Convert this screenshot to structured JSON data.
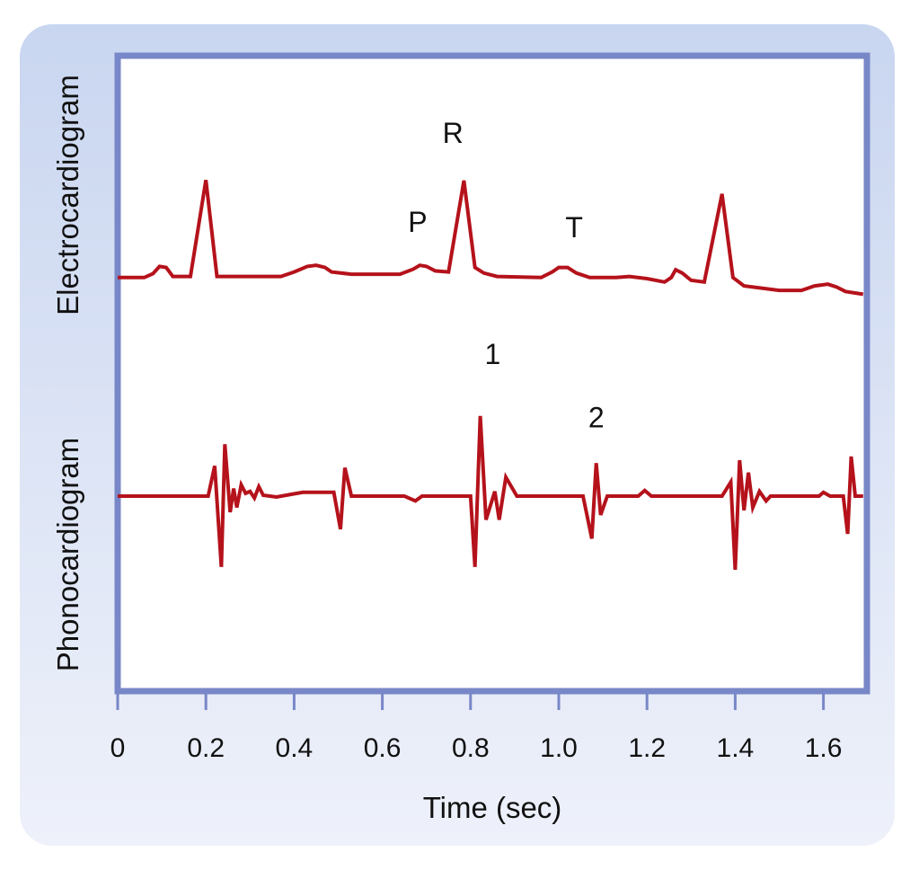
{
  "chart_data": {
    "type": "line",
    "xlabel": "Time (sec)",
    "xlim": [
      0,
      1.69
    ],
    "x_ticks": [
      0,
      0.2,
      0.4,
      0.6,
      0.8,
      1.0,
      1.2,
      1.4,
      1.6
    ],
    "x_tick_labels": [
      "0",
      "0.2",
      "0.4",
      "0.6",
      "0.8",
      "1.0",
      "1.2",
      "1.4",
      "1.6"
    ],
    "grid": false,
    "series": [
      {
        "name": "Electrocardiogram",
        "color": "#b5121b",
        "points": [
          [
            0,
            0.1
          ],
          [
            0.06,
            0.1
          ],
          [
            0.08,
            0.17
          ],
          [
            0.095,
            0.3
          ],
          [
            0.11,
            0.28
          ],
          [
            0.125,
            0.12
          ],
          [
            0.165,
            0.12
          ],
          [
            0.2,
            1.85
          ],
          [
            0.225,
            0.12
          ],
          [
            0.37,
            0.12
          ],
          [
            0.4,
            0.2
          ],
          [
            0.43,
            0.3
          ],
          [
            0.45,
            0.32
          ],
          [
            0.47,
            0.28
          ],
          [
            0.485,
            0.2
          ],
          [
            0.53,
            0.16
          ],
          [
            0.64,
            0.16
          ],
          [
            0.67,
            0.25
          ],
          [
            0.685,
            0.32
          ],
          [
            0.7,
            0.3
          ],
          [
            0.72,
            0.22
          ],
          [
            0.75,
            0.2
          ],
          [
            0.785,
            1.84
          ],
          [
            0.81,
            0.28
          ],
          [
            0.83,
            0.18
          ],
          [
            0.86,
            0.12
          ],
          [
            0.96,
            0.1
          ],
          [
            0.985,
            0.2
          ],
          [
            1.0,
            0.28
          ],
          [
            1.02,
            0.28
          ],
          [
            1.04,
            0.18
          ],
          [
            1.07,
            0.1
          ],
          [
            1.13,
            0.1
          ],
          [
            1.16,
            0.12
          ],
          [
            1.2,
            0.08
          ],
          [
            1.24,
            0.02
          ],
          [
            1.255,
            0.1
          ],
          [
            1.265,
            0.24
          ],
          [
            1.28,
            0.18
          ],
          [
            1.3,
            0.05
          ],
          [
            1.33,
            0.02
          ],
          [
            1.37,
            1.6
          ],
          [
            1.395,
            0.1
          ],
          [
            1.42,
            -0.05
          ],
          [
            1.5,
            -0.13
          ],
          [
            1.55,
            -0.13
          ],
          [
            1.58,
            -0.05
          ],
          [
            1.61,
            -0.02
          ],
          [
            1.63,
            -0.07
          ],
          [
            1.65,
            -0.15
          ],
          [
            1.69,
            -0.2
          ]
        ]
      },
      {
        "name": "Phonocardiogram",
        "color": "#b5121b",
        "points": [
          [
            0,
            0
          ],
          [
            0.205,
            0
          ],
          [
            0.22,
            0.32
          ],
          [
            0.235,
            -0.75
          ],
          [
            0.243,
            0.55
          ],
          [
            0.255,
            -0.17
          ],
          [
            0.263,
            0.08
          ],
          [
            0.27,
            -0.12
          ],
          [
            0.28,
            0.12
          ],
          [
            0.29,
            0.03
          ],
          [
            0.3,
            0.05
          ],
          [
            0.31,
            -0.02
          ],
          [
            0.32,
            0.1
          ],
          [
            0.33,
            0.01
          ],
          [
            0.36,
            -0.01
          ],
          [
            0.395,
            0.02
          ],
          [
            0.42,
            0.04
          ],
          [
            0.49,
            0.04
          ],
          [
            0.505,
            -0.35
          ],
          [
            0.515,
            0.3
          ],
          [
            0.53,
            0
          ],
          [
            0.65,
            0
          ],
          [
            0.675,
            -0.05
          ],
          [
            0.69,
            0
          ],
          [
            0.8,
            0
          ],
          [
            0.81,
            -0.75
          ],
          [
            0.822,
            0.85
          ],
          [
            0.835,
            -0.25
          ],
          [
            0.855,
            0.05
          ],
          [
            0.865,
            -0.25
          ],
          [
            0.88,
            0.2
          ],
          [
            0.905,
            0
          ],
          [
            1.055,
            0
          ],
          [
            1.075,
            -0.45
          ],
          [
            1.085,
            0.35
          ],
          [
            1.095,
            -0.2
          ],
          [
            1.11,
            0
          ],
          [
            1.18,
            0
          ],
          [
            1.195,
            0.06
          ],
          [
            1.21,
            0
          ],
          [
            1.37,
            0
          ],
          [
            1.39,
            0.15
          ],
          [
            1.4,
            -0.78
          ],
          [
            1.41,
            0.38
          ],
          [
            1.42,
            -0.15
          ],
          [
            1.43,
            0.25
          ],
          [
            1.44,
            -0.12
          ],
          [
            1.455,
            0.05
          ],
          [
            1.47,
            -0.05
          ],
          [
            1.48,
            0
          ],
          [
            1.59,
            0
          ],
          [
            1.6,
            0.04
          ],
          [
            1.615,
            0
          ],
          [
            1.645,
            0
          ],
          [
            1.655,
            -0.4
          ],
          [
            1.663,
            0.42
          ],
          [
            1.672,
            0
          ],
          [
            1.69,
            0
          ]
        ]
      }
    ],
    "annotations": [
      {
        "text": "R",
        "series": "Electrocardiogram",
        "x": 0.76,
        "y": 2.52
      },
      {
        "text": "P",
        "series": "Electrocardiogram",
        "x": 0.68,
        "y": 0.92
      },
      {
        "text": "T",
        "series": "Electrocardiogram",
        "x": 1.035,
        "y": 0.82
      },
      {
        "text": "1",
        "series": "Phonocardiogram",
        "x": 0.85,
        "y": 1.4
      },
      {
        "text": "2",
        "series": "Phonocardiogram",
        "x": 1.085,
        "y": 0.73
      }
    ],
    "colors": {
      "background": "#d4ddf2",
      "plot_frame": "#7887c7",
      "trace": "#b5121b"
    }
  }
}
